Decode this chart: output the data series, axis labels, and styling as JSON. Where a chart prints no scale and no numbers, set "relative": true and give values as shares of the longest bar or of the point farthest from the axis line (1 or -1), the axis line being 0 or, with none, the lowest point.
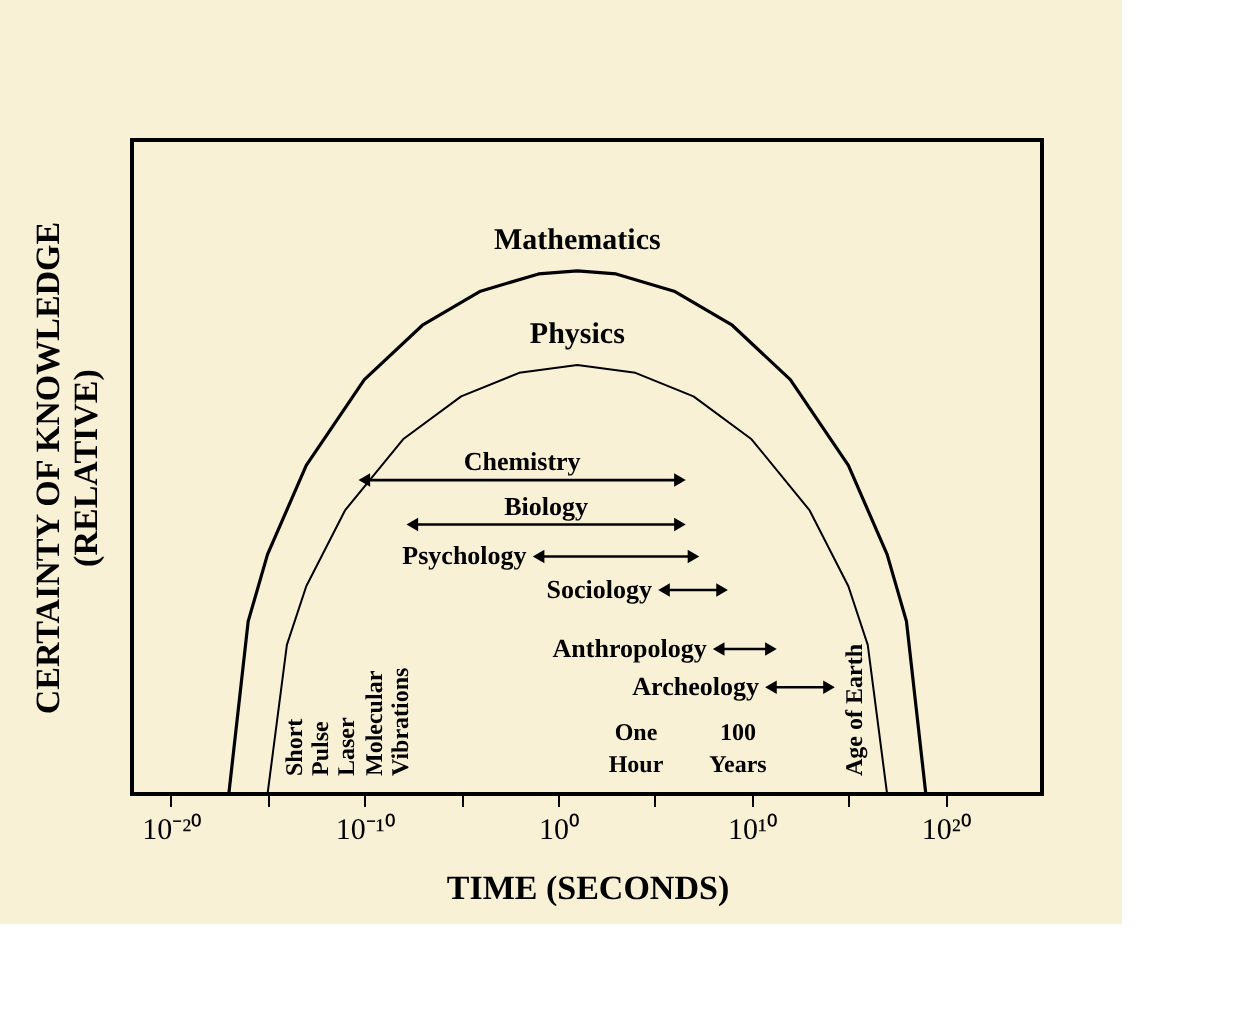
{
  "chart_data": {
    "type": "line",
    "relative": true,
    "log": "x",
    "grid": false,
    "legend": false,
    "xlabel": "TIME (SECONDS)",
    "ylabel": "CERTAINTY OF KNOWLEDGE (RELATIVE)",
    "xlim": [
      1e-22,
      1e+25
    ],
    "xticks": [
      {
        "value": 1e-20,
        "label": "10⁻²⁰"
      },
      {
        "value": 1e-15,
        "label": null
      },
      {
        "value": 1e-10,
        "label": "10⁻¹⁰"
      },
      {
        "value": 1e-05,
        "label": null
      },
      {
        "value": 1,
        "label": "10⁰"
      },
      {
        "value": 100000.0,
        "label": null
      },
      {
        "value": 10000000000.0,
        "label": "10¹⁰"
      },
      {
        "value": 1000000000000000.0,
        "label": null
      },
      {
        "value": 1e+20,
        "label": "10²⁰"
      }
    ],
    "series": [
      {
        "name": "Mathematics",
        "marker": "none",
        "color": "#000000",
        "x": [
          1e-17,
          1e-16,
          1e-15,
          1e-13,
          1e-10,
          1e-07,
          0.0001,
          0.1,
          10,
          1000.0,
          1000000.0,
          1000000000.0,
          1000000000000.0,
          1000000000000000.0,
          1e+17,
          1e+18,
          1e+19
        ],
        "values": [
          0,
          0.33,
          0.458,
          0.628,
          0.792,
          0.896,
          0.961,
          0.994,
          1,
          0.994,
          0.961,
          0.896,
          0.792,
          0.628,
          0.458,
          0.33,
          0
        ]
      },
      {
        "name": "Physics",
        "marker": "none",
        "color": "#000000",
        "x": [
          1e-15,
          1e-14,
          1e-13,
          1e-11,
          1e-08,
          1e-05,
          0.01,
          10,
          10000.0,
          10000000.0,
          10000000000.0,
          10000000000000.0,
          1000000000000000.0,
          1e+16,
          1e+17
        ],
        "values": [
          0,
          0.285,
          0.397,
          0.542,
          0.678,
          0.76,
          0.805,
          0.82,
          0.805,
          0.76,
          0.678,
          0.542,
          0.397,
          0.285,
          0
        ]
      },
      {
        "name": "Chemistry",
        "marker": "triangle",
        "color": "#000000",
        "x": [
          1e-10,
          2000000.0
        ],
        "values": [
          0.6,
          0.6
        ]
      },
      {
        "name": "Biology",
        "marker": "triangle",
        "color": "#000000",
        "x": [
          3e-08,
          2000000.0
        ],
        "values": [
          0.515,
          0.515
        ]
      },
      {
        "name": "Psychology",
        "marker": "triangle",
        "color": "#000000",
        "x": [
          0.1,
          10000000.0
        ],
        "values": [
          0.454,
          0.454
        ]
      },
      {
        "name": "Sociology",
        "marker": "triangle",
        "color": "#000000",
        "x": [
          300000.0,
          300000000.0
        ],
        "values": [
          0.39,
          0.39
        ]
      },
      {
        "name": "Anthropology",
        "marker": "triangle",
        "color": "#000000",
        "x": [
          200000000.0,
          100000000000.0
        ],
        "values": [
          0.277,
          0.277
        ]
      },
      {
        "name": "Archeology",
        "marker": "triangle",
        "color": "#000000",
        "x": [
          100000000000.0,
          100000000000000.0
        ],
        "values": [
          0.204,
          0.204
        ]
      }
    ],
    "annotations": [
      "Short\nPulse\nLaser",
      "Molecular\nVibrations",
      "One\nHour",
      "100\nYears",
      "Age of Earth"
    ]
  }
}
